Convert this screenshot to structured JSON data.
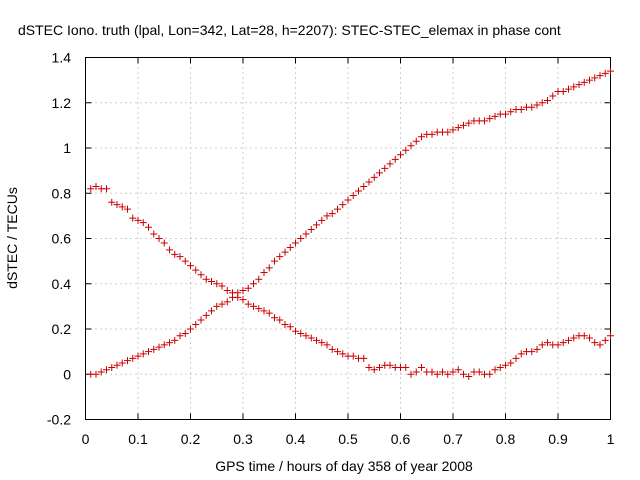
{
  "chart_data": {
    "type": "scatter",
    "title": "dSTEC Iono. truth (lpal, Lon=342, Lat=28, h=2207): STEC-STEC_elemax in phase cont",
    "xlabel": "GPS time / hours of day 358 of year 2008",
    "ylabel": "dSTEC  / TECUs",
    "xlim": [
      0,
      1
    ],
    "ylim": [
      -0.2,
      1.4
    ],
    "x_ticks": [
      0,
      0.1,
      0.2,
      0.3,
      0.4,
      0.5,
      0.6,
      0.7,
      0.8,
      0.9,
      1
    ],
    "x_tick_labels": [
      "0",
      "0.1",
      "0.2",
      "0.3",
      "0.4",
      "0.5",
      "0.6",
      "0.7",
      "0.8",
      "0.9",
      "1"
    ],
    "y_ticks": [
      -0.2,
      0,
      0.2,
      0.4,
      0.6,
      0.8,
      1,
      1.2,
      1.4
    ],
    "y_tick_labels": [
      "-0.2",
      "0",
      "0.2",
      "0.4",
      "0.6",
      "0.8",
      "1",
      "1.2",
      "1.4"
    ],
    "grid": true,
    "marker": "plus",
    "color": "#cc0000",
    "series": [
      {
        "values_x": [
          0.01,
          0.02,
          0.03,
          0.04,
          0.05,
          0.06,
          0.07,
          0.08,
          0.09,
          0.1,
          0.11,
          0.12,
          0.13,
          0.14,
          0.15,
          0.16,
          0.17,
          0.18,
          0.19,
          0.2,
          0.21,
          0.22,
          0.23,
          0.24,
          0.25,
          0.26,
          0.27,
          0.28,
          0.29,
          0.3,
          0.31,
          0.32,
          0.33,
          0.34,
          0.35,
          0.36,
          0.37,
          0.38,
          0.39,
          0.4,
          0.41,
          0.42,
          0.43,
          0.44,
          0.45,
          0.46,
          0.47,
          0.48,
          0.49,
          0.5,
          0.51,
          0.52,
          0.53,
          0.54,
          0.55,
          0.56,
          0.57,
          0.58,
          0.59,
          0.6,
          0.61,
          0.62,
          0.63,
          0.64,
          0.65,
          0.66,
          0.67,
          0.68,
          0.69,
          0.7,
          0.71,
          0.72,
          0.73,
          0.74,
          0.75,
          0.76,
          0.77,
          0.78,
          0.79,
          0.8,
          0.81,
          0.82,
          0.83,
          0.84,
          0.85,
          0.86,
          0.87,
          0.88,
          0.89,
          0.9,
          0.91,
          0.92,
          0.93,
          0.94,
          0.95,
          0.96,
          0.97,
          0.98,
          0.99,
          1.0
        ],
        "values_y": [
          0.0,
          0.0,
          0.01,
          0.02,
          0.03,
          0.04,
          0.05,
          0.06,
          0.07,
          0.08,
          0.09,
          0.1,
          0.11,
          0.12,
          0.13,
          0.14,
          0.15,
          0.17,
          0.18,
          0.2,
          0.22,
          0.24,
          0.26,
          0.28,
          0.3,
          0.31,
          0.32,
          0.34,
          0.36,
          0.37,
          0.38,
          0.4,
          0.42,
          0.45,
          0.47,
          0.5,
          0.52,
          0.54,
          0.56,
          0.58,
          0.6,
          0.62,
          0.64,
          0.66,
          0.68,
          0.7,
          0.71,
          0.73,
          0.75,
          0.77,
          0.79,
          0.81,
          0.83,
          0.85,
          0.87,
          0.89,
          0.91,
          0.93,
          0.95,
          0.97,
          0.99,
          1.01,
          1.03,
          1.05,
          1.06,
          1.06,
          1.07,
          1.07,
          1.07,
          1.08,
          1.09,
          1.1,
          1.11,
          1.12,
          1.12,
          1.12,
          1.13,
          1.14,
          1.15,
          1.15,
          1.16,
          1.17,
          1.17,
          1.18,
          1.18,
          1.19,
          1.2,
          1.21,
          1.23,
          1.25,
          1.25,
          1.26,
          1.27,
          1.28,
          1.29,
          1.3,
          1.31,
          1.32,
          1.33,
          1.34
        ]
      },
      {
        "values_x": [
          0.01,
          0.02,
          0.03,
          0.04,
          0.05,
          0.06,
          0.07,
          0.08,
          0.09,
          0.1,
          0.11,
          0.12,
          0.13,
          0.14,
          0.15,
          0.16,
          0.17,
          0.18,
          0.19,
          0.2,
          0.21,
          0.22,
          0.23,
          0.24,
          0.25,
          0.26,
          0.27,
          0.28,
          0.29,
          0.3,
          0.31,
          0.32,
          0.33,
          0.34,
          0.35,
          0.36,
          0.37,
          0.38,
          0.39,
          0.4,
          0.41,
          0.42,
          0.43,
          0.44,
          0.45,
          0.46,
          0.47,
          0.48,
          0.49,
          0.5,
          0.51,
          0.52,
          0.53,
          0.54,
          0.55,
          0.56,
          0.57,
          0.58,
          0.59,
          0.6,
          0.61,
          0.62,
          0.63,
          0.64,
          0.65,
          0.66,
          0.67,
          0.68,
          0.69,
          0.7,
          0.71,
          0.72,
          0.73,
          0.74,
          0.75,
          0.76,
          0.77,
          0.78,
          0.79,
          0.8,
          0.81,
          0.82,
          0.83,
          0.84,
          0.85,
          0.86,
          0.87,
          0.88,
          0.89,
          0.9,
          0.91,
          0.92,
          0.93,
          0.94,
          0.95,
          0.96,
          0.97,
          0.98,
          0.99,
          1.0
        ],
        "values_y": [
          0.82,
          0.83,
          0.82,
          0.82,
          0.76,
          0.75,
          0.74,
          0.73,
          0.69,
          0.68,
          0.67,
          0.65,
          0.62,
          0.6,
          0.58,
          0.55,
          0.53,
          0.52,
          0.5,
          0.48,
          0.46,
          0.44,
          0.42,
          0.41,
          0.4,
          0.39,
          0.37,
          0.36,
          0.34,
          0.33,
          0.31,
          0.3,
          0.29,
          0.28,
          0.27,
          0.25,
          0.24,
          0.22,
          0.21,
          0.19,
          0.18,
          0.17,
          0.16,
          0.15,
          0.14,
          0.13,
          0.11,
          0.1,
          0.09,
          0.08,
          0.08,
          0.07,
          0.07,
          0.03,
          0.02,
          0.03,
          0.04,
          0.04,
          0.03,
          0.03,
          0.03,
          0.0,
          0.01,
          0.03,
          0.01,
          0.01,
          0.0,
          0.01,
          0.0,
          0.01,
          0.02,
          0.0,
          -0.01,
          0.01,
          0.01,
          0.0,
          0.0,
          0.02,
          0.03,
          0.04,
          0.05,
          0.07,
          0.09,
          0.1,
          0.1,
          0.11,
          0.13,
          0.14,
          0.13,
          0.13,
          0.14,
          0.15,
          0.16,
          0.17,
          0.17,
          0.16,
          0.14,
          0.13,
          0.15,
          0.17
        ]
      }
    ]
  }
}
